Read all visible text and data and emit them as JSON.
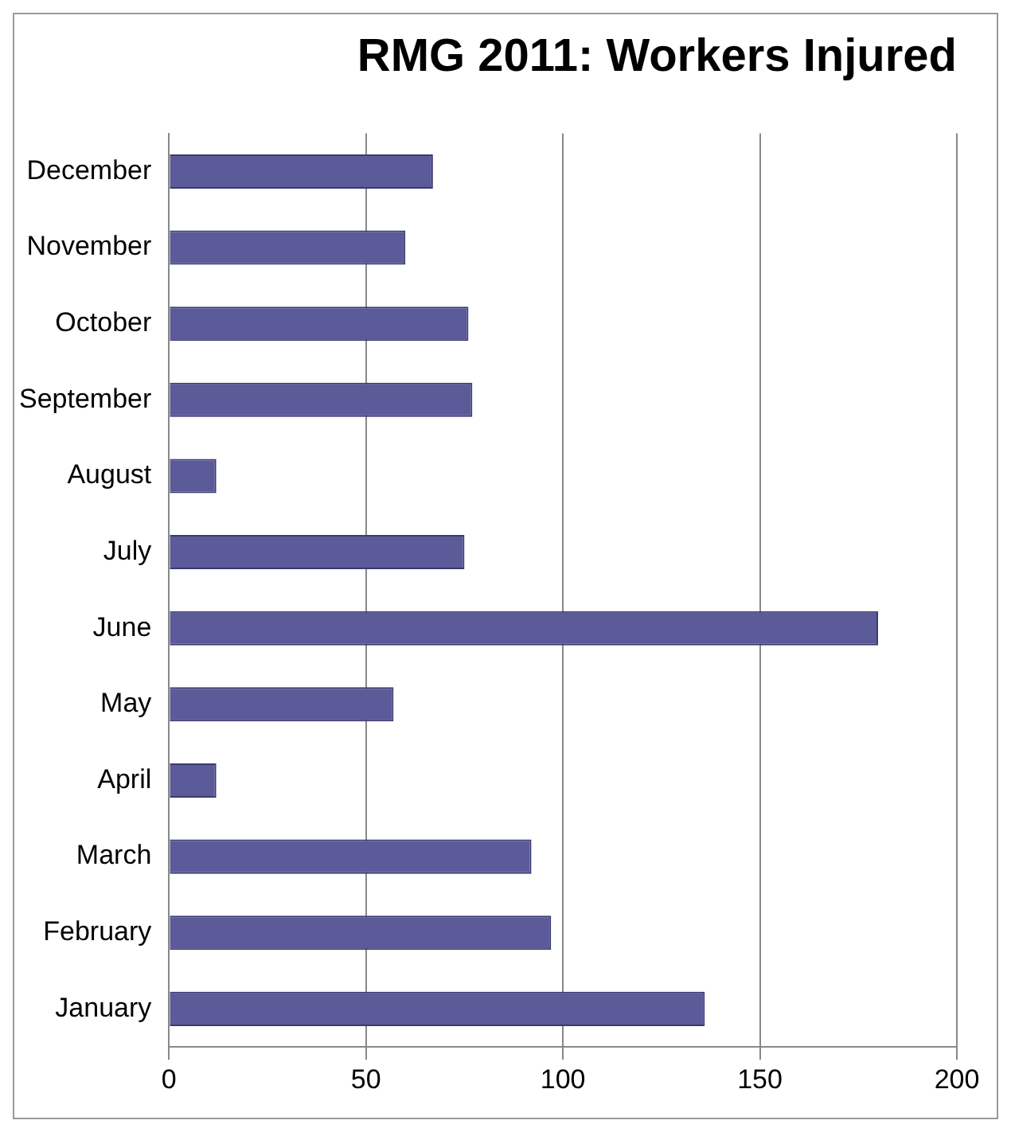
{
  "chart_data": {
    "type": "bar",
    "orientation": "horizontal",
    "title": "RMG 2011: Workers Injured",
    "categories": [
      "December",
      "November",
      "October",
      "September",
      "August",
      "July",
      "June",
      "May",
      "April",
      "March",
      "February",
      "January"
    ],
    "values": [
      67,
      60,
      76,
      77,
      12,
      75,
      180,
      57,
      12,
      92,
      97,
      136
    ],
    "color": "#5b5b9a",
    "xlim": [
      0,
      200
    ],
    "xticks": [
      0,
      50,
      100,
      150,
      200
    ],
    "grid": "x",
    "legend": false
  }
}
